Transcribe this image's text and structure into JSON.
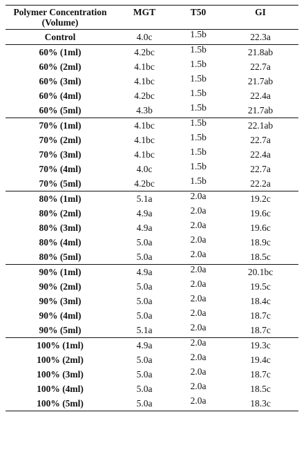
{
  "table": {
    "headers": {
      "concentration_line1": "Polymer Concentration",
      "concentration_line2": "(Volume)",
      "mgt": "MGT",
      "t50": "T50",
      "gi": "GI"
    },
    "rows": [
      {
        "concentration": "Control",
        "mgt": "4.0c",
        "t50": "1.5b",
        "gi": "22.3a"
      },
      {
        "concentration": "60% (1ml)",
        "mgt": "4.2bc",
        "t50": "1.5b",
        "gi": "21.8ab"
      },
      {
        "concentration": "60% (2ml)",
        "mgt": "4.1bc",
        "t50": "1.5b",
        "gi": "22.7a"
      },
      {
        "concentration": "60% (3ml)",
        "mgt": "4.1bc",
        "t50": "1.5b",
        "gi": "21.7ab"
      },
      {
        "concentration": "60% (4ml)",
        "mgt": "4.2bc",
        "t50": "1.5b",
        "gi": "22.4a"
      },
      {
        "concentration": "60% (5ml)",
        "mgt": "4.3b",
        "t50": "1.5b",
        "gi": "21.7ab"
      },
      {
        "concentration": "70% (1ml)",
        "mgt": "4.1bc",
        "t50": "1.5b",
        "gi": "22.1ab"
      },
      {
        "concentration": "70% (2ml)",
        "mgt": "4.1bc",
        "t50": "1.5b",
        "gi": "22.7a"
      },
      {
        "concentration": "70% (3ml)",
        "mgt": "4.1bc",
        "t50": "1.5b",
        "gi": "22.4a"
      },
      {
        "concentration": "70% (4ml)",
        "mgt": "4.0c",
        "t50": "1.5b",
        "gi": "22.7a"
      },
      {
        "concentration": "70% (5ml)",
        "mgt": "4.2bc",
        "t50": "1.5b",
        "gi": "22.2a"
      },
      {
        "concentration": "80% (1ml)",
        "mgt": "5.1a",
        "t50": "2.0a",
        "gi": "19.2c"
      },
      {
        "concentration": "80% (2ml)",
        "mgt": "4.9a",
        "t50": "2.0a",
        "gi": "19.6c"
      },
      {
        "concentration": "80% (3ml)",
        "mgt": "4.9a",
        "t50": "2.0a",
        "gi": "19.6c"
      },
      {
        "concentration": "80% (4ml)",
        "mgt": "5.0a",
        "t50": "2.0a",
        "gi": "18.9c"
      },
      {
        "concentration": "80% (5ml)",
        "mgt": "5.0a",
        "t50": "2.0a",
        "gi": "18.5c"
      },
      {
        "concentration": "90% (1ml)",
        "mgt": "4.9a",
        "t50": "2.0a",
        "gi": "20.1bc"
      },
      {
        "concentration": "90% (2ml)",
        "mgt": "5.0a",
        "t50": "2.0a",
        "gi": "19.5c"
      },
      {
        "concentration": "90% (3ml)",
        "mgt": "5.0a",
        "t50": "2.0a",
        "gi": "18.4c"
      },
      {
        "concentration": "90% (4ml)",
        "mgt": "5.0a",
        "t50": "2.0a",
        "gi": "18.7c"
      },
      {
        "concentration": "90% (5ml)",
        "mgt": "5.1a",
        "t50": "2.0a",
        "gi": "18.7c"
      },
      {
        "concentration": "100% (1ml)",
        "mgt": "4.9a",
        "t50": "2.0a",
        "gi": "19.3c"
      },
      {
        "concentration": "100% (2ml)",
        "mgt": "5.0a",
        "t50": "2.0a",
        "gi": "19.4c"
      },
      {
        "concentration": "100% (3ml)",
        "mgt": "5.0a",
        "t50": "2.0a",
        "gi": "18.7c"
      },
      {
        "concentration": "100% (4ml)",
        "mgt": "5.0a",
        "t50": "2.0a",
        "gi": "18.5c"
      },
      {
        "concentration": "100% (5ml)",
        "mgt": "5.0a",
        "t50": "2.0a",
        "gi": "18.3c"
      }
    ]
  }
}
